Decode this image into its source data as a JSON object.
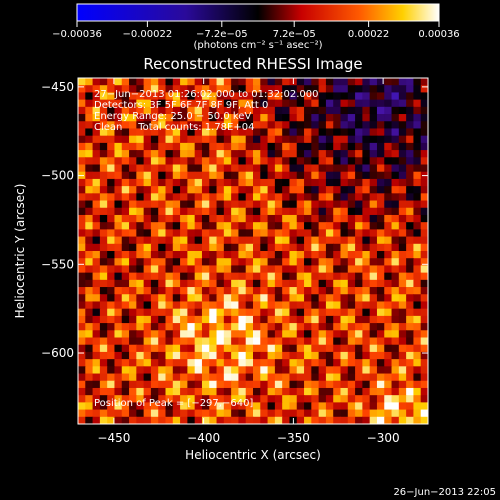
{
  "chart_data": {
    "type": "heatmap",
    "title": "Reconstructed RHESSI Image",
    "xlabel": "Heliocentric X (arcsec)",
    "ylabel": "Heliocentric Y (arcsec)",
    "xlim": [
      -470,
      -275
    ],
    "ylim": [
      -640,
      -445
    ],
    "x_ticks": [
      -450,
      -400,
      -350,
      -300
    ],
    "y_ticks": [
      -600,
      -550,
      -500,
      -450
    ],
    "x_tick_labels": [
      "−450",
      "−400",
      "−350",
      "−300"
    ],
    "y_tick_labels": [
      "−600",
      "−550",
      "−500",
      "−450"
    ],
    "colorbar": {
      "range": [
        -0.00036,
        0.00036
      ],
      "ticks": [
        -0.00036,
        -0.00022,
        -7.2e-05,
        7.2e-05,
        0.00022,
        0.00036
      ],
      "tick_labels": [
        "−0.00036",
        "−0.00022",
        "−7.2e−05",
        "7.2e−05",
        "0.00022",
        "0.00036"
      ],
      "unit_label": "(photons cm⁻² s⁻¹ asec⁻²)"
    },
    "annotations": [
      "27−Jun−2013 01:26:02.000 to 01:32:02.000",
      "Detectors: 3F 5F 6F 7F 8F 9F, Att 0",
      "Energy Range: 25.0 − 50.0 keV",
      "Clean     Total counts: 1.78E+04"
    ],
    "peak_label": "Position of Peak = [−297,−640]",
    "peak_position": [
      -297,
      -640
    ],
    "timestamp": "26−Jun−2013 22:05",
    "grid": false,
    "colormap": [
      "#0000ff",
      "#000000",
      "#ff0000",
      "#ffff00",
      "#ffffff"
    ]
  }
}
